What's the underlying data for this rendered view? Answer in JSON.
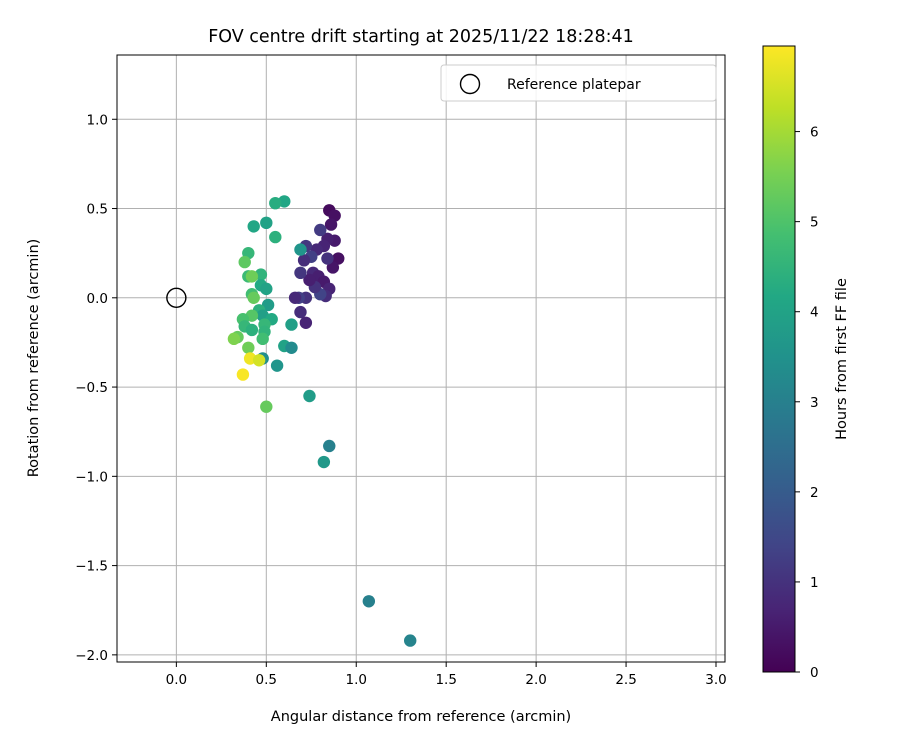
{
  "chart_data": {
    "type": "scatter",
    "title": "FOV centre drift starting at 2025/11/22 18:28:41",
    "xlabel": "Angular distance from reference (arcmin)",
    "ylabel": "Rotation from reference (arcmin)",
    "colorbar_label": "Hours from first FF file",
    "xlim": [
      -0.33,
      3.05
    ],
    "ylim": [
      -2.04,
      1.36
    ],
    "xticks": [
      0.0,
      0.5,
      1.0,
      1.5,
      2.0,
      2.5,
      3.0
    ],
    "xtick_labels": [
      "0.0",
      "0.5",
      "1.0",
      "1.5",
      "2.0",
      "2.5",
      "3.0"
    ],
    "yticks": [
      1.0,
      0.5,
      0.0,
      -0.5,
      -1.0,
      -1.5,
      -2.0
    ],
    "ytick_labels": [
      "1.0",
      "0.5",
      "0.0",
      "−0.5",
      "−1.0",
      "−1.5",
      "−2.0"
    ],
    "colorbar_range": [
      0,
      6.95
    ],
    "colorbar_ticks": [
      0,
      1,
      2,
      3,
      4,
      5,
      6
    ],
    "colorbar_tick_labels": [
      "0",
      "1",
      "2",
      "3",
      "4",
      "5",
      "6"
    ],
    "colormap": "viridis",
    "grid": true,
    "legend": {
      "position": "top-right",
      "entries": [
        "Reference platepar"
      ]
    },
    "reference_point": {
      "x": 0.0,
      "y": 0.0
    },
    "points": [
      {
        "x": 0.85,
        "y": 0.49,
        "t": 0.2
      },
      {
        "x": 0.88,
        "y": 0.46,
        "t": 0.3
      },
      {
        "x": 0.86,
        "y": 0.41,
        "t": 0.4
      },
      {
        "x": 0.88,
        "y": 0.32,
        "t": 0.5
      },
      {
        "x": 0.84,
        "y": 0.33,
        "t": 0.6
      },
      {
        "x": 0.9,
        "y": 0.22,
        "t": 0.3
      },
      {
        "x": 0.87,
        "y": 0.17,
        "t": 0.4
      },
      {
        "x": 0.84,
        "y": 0.22,
        "t": 1.0
      },
      {
        "x": 0.8,
        "y": 0.38,
        "t": 1.2
      },
      {
        "x": 0.82,
        "y": 0.29,
        "t": 0.7
      },
      {
        "x": 0.78,
        "y": 0.27,
        "t": 0.8
      },
      {
        "x": 0.75,
        "y": 0.23,
        "t": 1.3
      },
      {
        "x": 0.72,
        "y": 0.29,
        "t": 1.1
      },
      {
        "x": 0.71,
        "y": 0.21,
        "t": 0.9
      },
      {
        "x": 0.76,
        "y": 0.14,
        "t": 0.8
      },
      {
        "x": 0.79,
        "y": 0.12,
        "t": 0.6
      },
      {
        "x": 0.82,
        "y": 0.09,
        "t": 0.5
      },
      {
        "x": 0.85,
        "y": 0.05,
        "t": 0.7
      },
      {
        "x": 0.83,
        "y": 0.01,
        "t": 0.9
      },
      {
        "x": 0.8,
        "y": 0.02,
        "t": 1.4
      },
      {
        "x": 0.77,
        "y": 0.06,
        "t": 1.0
      },
      {
        "x": 0.74,
        "y": 0.1,
        "t": 0.6
      },
      {
        "x": 0.69,
        "y": 0.14,
        "t": 1.1
      },
      {
        "x": 0.72,
        "y": 0.0,
        "t": 1.0
      },
      {
        "x": 0.68,
        "y": 0.0,
        "t": 1.3
      },
      {
        "x": 0.66,
        "y": 0.0,
        "t": 0.8
      },
      {
        "x": 0.69,
        "y": -0.08,
        "t": 0.9
      },
      {
        "x": 0.72,
        "y": -0.14,
        "t": 0.7
      },
      {
        "x": 0.69,
        "y": 0.27,
        "t": 3.6
      },
      {
        "x": 0.6,
        "y": 0.54,
        "t": 4.1
      },
      {
        "x": 0.55,
        "y": 0.53,
        "t": 4.3
      },
      {
        "x": 0.5,
        "y": 0.42,
        "t": 4.0
      },
      {
        "x": 0.43,
        "y": 0.4,
        "t": 4.1
      },
      {
        "x": 0.55,
        "y": 0.34,
        "t": 4.4
      },
      {
        "x": 0.4,
        "y": 0.25,
        "t": 4.6
      },
      {
        "x": 0.38,
        "y": 0.2,
        "t": 5.2
      },
      {
        "x": 0.47,
        "y": 0.13,
        "t": 4.5
      },
      {
        "x": 0.4,
        "y": 0.12,
        "t": 4.7
      },
      {
        "x": 0.42,
        "y": 0.12,
        "t": 5.4
      },
      {
        "x": 0.47,
        "y": 0.07,
        "t": 4.2
      },
      {
        "x": 0.5,
        "y": 0.05,
        "t": 4.0
      },
      {
        "x": 0.42,
        "y": 0.02,
        "t": 4.8
      },
      {
        "x": 0.43,
        "y": 0.0,
        "t": 5.3
      },
      {
        "x": 0.51,
        "y": -0.04,
        "t": 3.8
      },
      {
        "x": 0.46,
        "y": -0.07,
        "t": 4.4
      },
      {
        "x": 0.48,
        "y": -0.1,
        "t": 3.9
      },
      {
        "x": 0.53,
        "y": -0.12,
        "t": 4.2
      },
      {
        "x": 0.49,
        "y": -0.15,
        "t": 4.6
      },
      {
        "x": 0.42,
        "y": -0.1,
        "t": 5.1
      },
      {
        "x": 0.37,
        "y": -0.12,
        "t": 4.9
      },
      {
        "x": 0.38,
        "y": -0.16,
        "t": 4.6
      },
      {
        "x": 0.42,
        "y": -0.18,
        "t": 4.4
      },
      {
        "x": 0.49,
        "y": -0.19,
        "t": 4.5
      },
      {
        "x": 0.48,
        "y": -0.23,
        "t": 4.8
      },
      {
        "x": 0.34,
        "y": -0.22,
        "t": 5.3
      },
      {
        "x": 0.32,
        "y": -0.23,
        "t": 5.6
      },
      {
        "x": 0.4,
        "y": -0.28,
        "t": 5.4
      },
      {
        "x": 0.6,
        "y": -0.27,
        "t": 4.0
      },
      {
        "x": 0.64,
        "y": -0.15,
        "t": 3.9
      },
      {
        "x": 0.64,
        "y": -0.28,
        "t": 3.3
      },
      {
        "x": 0.48,
        "y": -0.34,
        "t": 3.4
      },
      {
        "x": 0.41,
        "y": -0.34,
        "t": 6.8
      },
      {
        "x": 0.46,
        "y": -0.35,
        "t": 6.5
      },
      {
        "x": 0.56,
        "y": -0.38,
        "t": 3.6
      },
      {
        "x": 0.37,
        "y": -0.43,
        "t": 6.9
      },
      {
        "x": 0.5,
        "y": -0.61,
        "t": 5.3
      },
      {
        "x": 0.74,
        "y": -0.55,
        "t": 3.8
      },
      {
        "x": 0.85,
        "y": -0.83,
        "t": 3.0
      },
      {
        "x": 0.82,
        "y": -0.92,
        "t": 3.7
      },
      {
        "x": 1.07,
        "y": -1.7,
        "t": 3.0
      },
      {
        "x": 1.3,
        "y": -1.92,
        "t": 3.1
      }
    ]
  }
}
